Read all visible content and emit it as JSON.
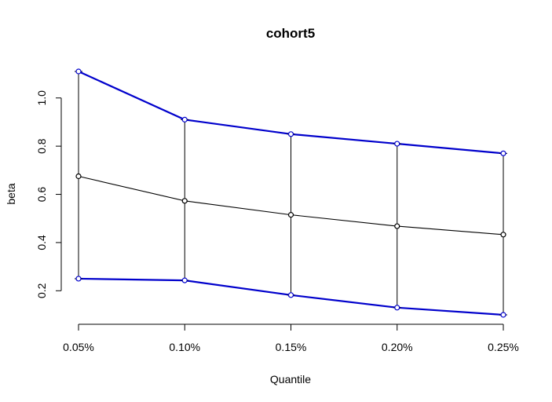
{
  "chart_data": {
    "type": "line",
    "title": "cohort5",
    "xlabel": "Quantile",
    "ylabel": "beta",
    "categories": [
      "0.05%",
      "0.10%",
      "0.15%",
      "0.20%",
      "0.25%"
    ],
    "yticks": [
      "0.2",
      "0.4",
      "0.6",
      "0.8",
      "1.0"
    ],
    "ytick_values": [
      0.2,
      0.4,
      0.6,
      0.8,
      1.0
    ],
    "ylim": [
      0.1,
      1.11
    ],
    "grid": false,
    "series": [
      {
        "role": "upper",
        "color": "#0000cc",
        "values": [
          1.11,
          0.91,
          0.85,
          0.81,
          0.77
        ]
      },
      {
        "role": "estimate",
        "color": "#000000",
        "values": [
          0.675,
          0.573,
          0.515,
          0.468,
          0.433
        ]
      },
      {
        "role": "lower",
        "color": "#0000cc",
        "values": [
          0.25,
          0.243,
          0.182,
          0.13,
          0.1
        ]
      }
    ],
    "error_bars": true
  }
}
